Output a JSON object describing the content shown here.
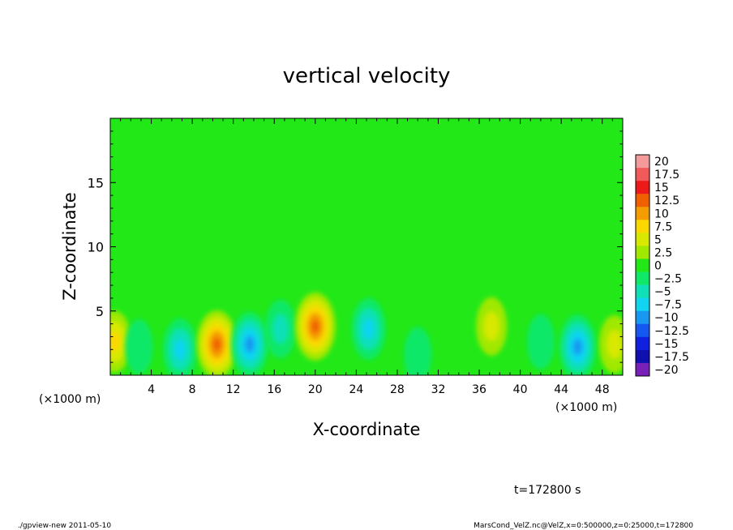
{
  "chart_data": {
    "type": "heatmap",
    "title": "vertical velocity",
    "xlabel": "X-coordinate",
    "ylabel": "Z-coordinate",
    "x_unit_label": "(×1000 m)",
    "x_unit_label_right": "(×1000 m)",
    "xlim": [
      0,
      50
    ],
    "ylim": [
      0,
      20
    ],
    "x_ticks": [
      4,
      8,
      12,
      16,
      20,
      24,
      28,
      32,
      36,
      40,
      44,
      48
    ],
    "x_tick_labels": [
      "4",
      "8",
      "12",
      "16",
      "20",
      "24",
      "28",
      "32",
      "36",
      "40",
      "44",
      "48"
    ],
    "y_ticks": [
      5,
      10,
      15
    ],
    "y_tick_labels": [
      "5",
      "10",
      "15"
    ],
    "colorbar": {
      "levels": [
        20,
        17.5,
        15,
        12.5,
        10,
        7.5,
        5,
        2.5,
        0,
        -2.5,
        -5,
        -7.5,
        -10,
        -12.5,
        -15,
        -17.5,
        -20
      ],
      "labels": [
        "20",
        "17.5",
        "15",
        "12.5",
        "10",
        "7.5",
        "5",
        "2.5",
        "0",
        "−2.5",
        "−5",
        "−7.5",
        "−10",
        "−12.5",
        "−15",
        "−17.5",
        "−20"
      ],
      "colors": [
        "#f49a9a",
        "#f25a5a",
        "#ee1a1a",
        "#f06000",
        "#f49c00",
        "#fbd800",
        "#d8e800",
        "#a0e800",
        "#22e818",
        "#10e868",
        "#10e0b8",
        "#10d4f0",
        "#1898f0",
        "#1458f0",
        "#1020e0",
        "#1010b0",
        "#7820b8"
      ]
    },
    "anomalies": [
      {
        "x": 0.4,
        "z": 2.6,
        "value": 7.5
      },
      {
        "x": 2.8,
        "z": 2.2,
        "value": -2.5
      },
      {
        "x": 6.8,
        "z": 2.0,
        "value": -7.5
      },
      {
        "x": 10.4,
        "z": 2.4,
        "value": 12.5
      },
      {
        "x": 13.6,
        "z": 2.4,
        "value": -10
      },
      {
        "x": 16.6,
        "z": 3.6,
        "value": -5
      },
      {
        "x": 20.0,
        "z": 3.8,
        "value": 12.5
      },
      {
        "x": 25.2,
        "z": 3.6,
        "value": -7.5
      },
      {
        "x": 30.0,
        "z": 1.6,
        "value": -2.5
      },
      {
        "x": 37.2,
        "z": 3.8,
        "value": 5
      },
      {
        "x": 42.0,
        "z": 2.6,
        "value": -2.5
      },
      {
        "x": 45.6,
        "z": 2.2,
        "value": -10
      },
      {
        "x": 49.2,
        "z": 2.4,
        "value": 5
      }
    ],
    "background_value": 0,
    "grid": false
  },
  "time_label": "t=172800 s",
  "footer": {
    "left": "./gpview-new   2011-05-10",
    "right": "MarsCond_VelZ.nc@VelZ,x=0:500000,z=0:25000,t=172800"
  }
}
